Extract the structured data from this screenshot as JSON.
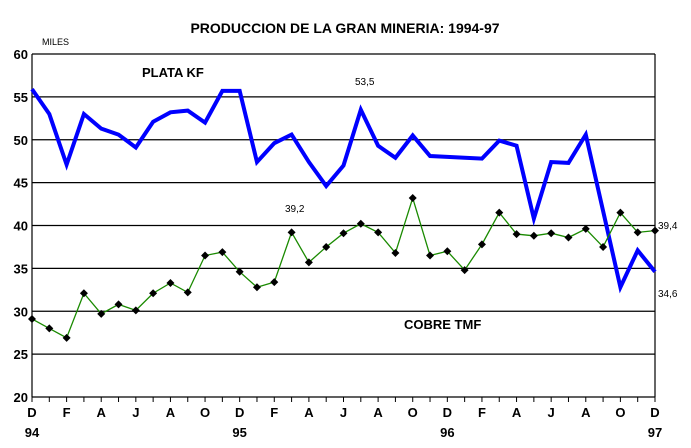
{
  "chart_data": {
    "type": "line",
    "title": "PRODUCCION DE LA GRAN MINERIA: 1994-97",
    "ylabel": "MILES",
    "xlabel": "",
    "ylim": [
      20,
      60
    ],
    "yticks": [
      20,
      25,
      30,
      35,
      40,
      45,
      50,
      55,
      60
    ],
    "grid": true,
    "x_tick_labels": [
      "D",
      "F",
      "A",
      "J",
      "A",
      "O",
      "D",
      "F",
      "A",
      "J",
      "A",
      "O",
      "D",
      "F",
      "A",
      "J",
      "A",
      "O",
      "D"
    ],
    "year_labels": [
      "94",
      "95",
      "96",
      "97"
    ],
    "months": 37,
    "series": [
      {
        "name": "PLATA KF",
        "color": "#0000ff",
        "values": [
          55.9,
          53.0,
          47.1,
          53.0,
          51.3,
          50.6,
          49.1,
          52.1,
          53.2,
          53.4,
          52.0,
          55.7,
          55.7,
          47.4,
          49.6,
          50.6,
          47.4,
          44.6,
          47.0,
          53.5,
          49.3,
          47.9,
          50.5,
          48.1,
          48.0,
          47.9,
          47.8,
          49.9,
          49.3,
          40.8,
          47.4,
          47.3,
          50.6,
          41.7,
          32.8,
          37.1,
          34.6
        ]
      },
      {
        "name": "COBRE TMF",
        "color": "#1a8a00",
        "values": [
          29.1,
          28.0,
          26.9,
          32.1,
          29.7,
          30.8,
          30.1,
          32.1,
          33.3,
          32.2,
          36.5,
          36.9,
          34.6,
          32.8,
          33.4,
          39.2,
          35.7,
          37.5,
          39.1,
          40.2,
          39.2,
          36.8,
          43.2,
          36.5,
          37.0,
          34.8,
          37.8,
          41.5,
          39.0,
          38.8,
          39.1,
          38.6,
          39.6,
          37.5,
          41.5,
          39.2,
          39.4
        ]
      }
    ],
    "annotations": [
      "53,5",
      "39,2",
      "39,4",
      "34,6"
    ]
  }
}
